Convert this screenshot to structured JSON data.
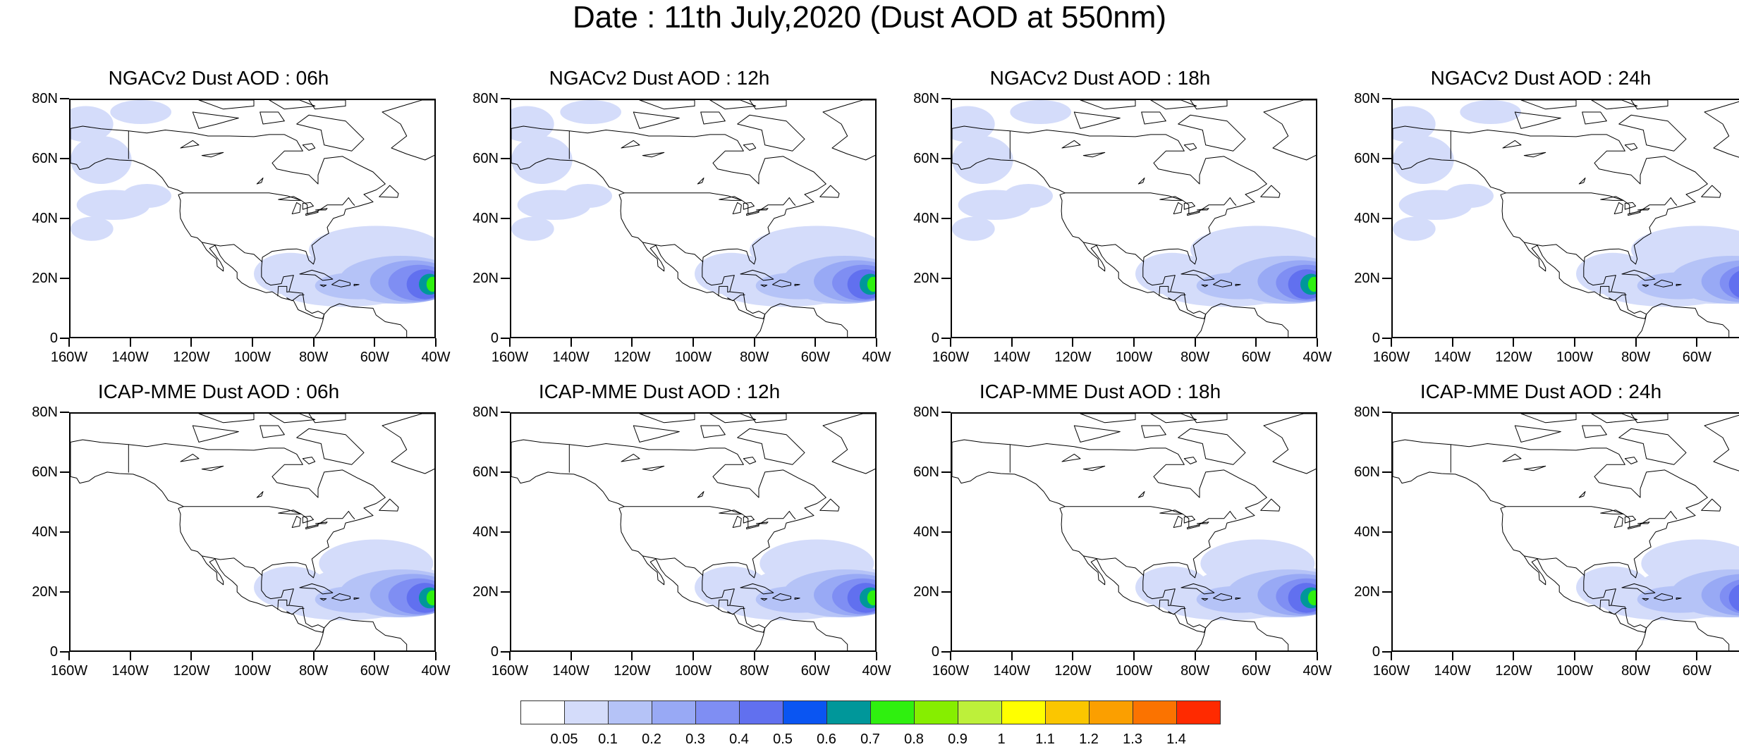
{
  "title": "Date : 11th July,2020 (Dust AOD at 550nm)",
  "axes": {
    "y_labels": [
      "80N",
      "60N",
      "40N",
      "20N",
      "0"
    ],
    "x_labels": [
      "160W",
      "140W",
      "120W",
      "100W",
      "80W",
      "60W",
      "40W"
    ]
  },
  "panels": [
    {
      "title": "NGACv2 Dust AOD : 06h",
      "model": "ngac",
      "hour": 6
    },
    {
      "title": "NGACv2 Dust AOD : 12h",
      "model": "ngac",
      "hour": 12
    },
    {
      "title": "NGACv2 Dust AOD : 18h",
      "model": "ngac",
      "hour": 18
    },
    {
      "title": "NGACv2 Dust AOD : 24h",
      "model": "ngac",
      "hour": 24
    },
    {
      "title": "ICAP-MME Dust AOD : 06h",
      "model": "icap",
      "hour": 6
    },
    {
      "title": "ICAP-MME Dust AOD : 12h",
      "model": "icap",
      "hour": 12
    },
    {
      "title": "ICAP-MME Dust AOD : 18h",
      "model": "icap",
      "hour": 18
    },
    {
      "title": "ICAP-MME Dust AOD : 24h",
      "model": "icap",
      "hour": 24
    }
  ],
  "colorbar": {
    "labels": [
      "0.05",
      "0.1",
      "0.2",
      "0.3",
      "0.4",
      "0.5",
      "0.6",
      "0.7",
      "0.8",
      "0.9",
      "1",
      "1.1",
      "1.2",
      "1.3",
      "1.4"
    ],
    "colors": [
      "#ffffff",
      "#d4dcfa",
      "#b5c3f7",
      "#98a9f5",
      "#7f8ef3",
      "#6170ef",
      "#0a55f2",
      "#00979a",
      "#2ff00f",
      "#86ee00",
      "#bdf03a",
      "#ffff00",
      "#fbc600",
      "#fb9f00",
      "#fb7300",
      "#ff2a00"
    ]
  }
}
